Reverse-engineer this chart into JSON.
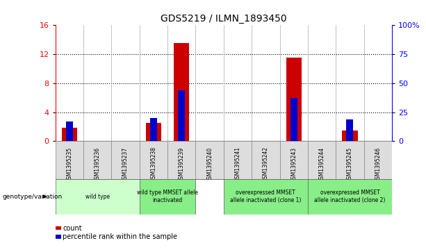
{
  "title": "GDS5219 / ILMN_1893450",
  "samples": [
    "GSM1395235",
    "GSM1395236",
    "GSM1395237",
    "GSM1395238",
    "GSM1395239",
    "GSM1395240",
    "GSM1395241",
    "GSM1395242",
    "GSM1395243",
    "GSM1395244",
    "GSM1395245",
    "GSM1395246"
  ],
  "count_values": [
    1.8,
    0,
    0,
    2.5,
    13.5,
    0,
    0,
    0,
    11.5,
    0,
    1.5,
    0
  ],
  "percentile_values": [
    17,
    0,
    0,
    20,
    44,
    0,
    0,
    0,
    37,
    0,
    19,
    0
  ],
  "ylim_left": [
    0,
    16
  ],
  "ylim_right": [
    0,
    100
  ],
  "yticks_left": [
    0,
    4,
    8,
    12,
    16
  ],
  "yticks_right": [
    0,
    25,
    50,
    75,
    100
  ],
  "bar_color_count": "#cc0000",
  "bar_color_percentile": "#0000cc",
  "groups": [
    {
      "label": "wild type",
      "start": 0,
      "end": 3,
      "color": "#ccffcc"
    },
    {
      "label": "wild type MMSET allele\ninactivated",
      "start": 3,
      "end": 5,
      "color": "#88ee88"
    },
    {
      "label": "overexpressed MMSET\nallele inactivated (clone 1)",
      "start": 6,
      "end": 9,
      "color": "#88ee88"
    },
    {
      "label": "overexpressed MMSET\nallele inactivated (clone 2)",
      "start": 9,
      "end": 12,
      "color": "#88ee88"
    }
  ],
  "genotype_label": "genotype/variation",
  "legend_count": "count",
  "legend_percentile": "percentile rank within the sample",
  "bg_color": "#ffffff",
  "title_fontsize": 10,
  "tick_fontsize": 7,
  "ytick_fontsize": 8
}
